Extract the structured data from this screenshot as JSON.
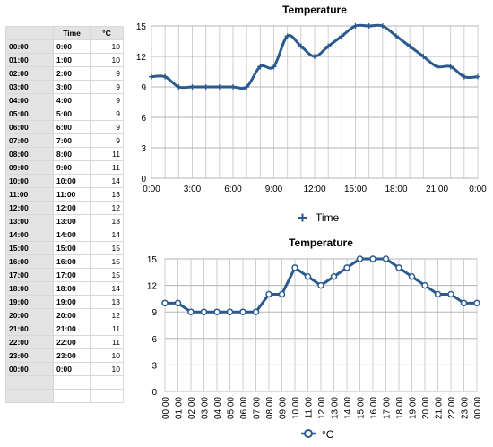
{
  "table": {
    "headers": [
      "",
      "Time",
      "°C"
    ],
    "rows": [
      [
        "00:00",
        "0:00",
        "10"
      ],
      [
        "01:00",
        "1:00",
        "10"
      ],
      [
        "02:00",
        "2:00",
        "9"
      ],
      [
        "03:00",
        "3:00",
        "9"
      ],
      [
        "04:00",
        "4:00",
        "9"
      ],
      [
        "05:00",
        "5:00",
        "9"
      ],
      [
        "06:00",
        "6:00",
        "9"
      ],
      [
        "07:00",
        "7:00",
        "9"
      ],
      [
        "08:00",
        "8:00",
        "11"
      ],
      [
        "09:00",
        "9:00",
        "11"
      ],
      [
        "10:00",
        "10:00",
        "14"
      ],
      [
        "11:00",
        "11:00",
        "13"
      ],
      [
        "12:00",
        "12:00",
        "12"
      ],
      [
        "13:00",
        "13:00",
        "13"
      ],
      [
        "14:00",
        "14:00",
        "14"
      ],
      [
        "15:00",
        "15:00",
        "15"
      ],
      [
        "16:00",
        "16:00",
        "15"
      ],
      [
        "17:00",
        "17:00",
        "15"
      ],
      [
        "18:00",
        "18:00",
        "14"
      ],
      [
        "19:00",
        "19:00",
        "13"
      ],
      [
        "20:00",
        "20:00",
        "12"
      ],
      [
        "21:00",
        "21:00",
        "11"
      ],
      [
        "22:00",
        "22:00",
        "11"
      ],
      [
        "23:00",
        "23:00",
        "10"
      ],
      [
        "00:00",
        "0:00",
        "10"
      ],
      [
        "",
        "",
        " "
      ],
      [
        "",
        "",
        ""
      ]
    ]
  },
  "chart_data": [
    {
      "type": "line",
      "title": "Temperature",
      "xlabel": "",
      "ylabel": "",
      "x": [
        0,
        1,
        2,
        3,
        4,
        5,
        6,
        7,
        8,
        9,
        10,
        11,
        12,
        13,
        14,
        15,
        16,
        17,
        18,
        19,
        20,
        21,
        22,
        23,
        24
      ],
      "series": [
        {
          "name": "Time",
          "values": [
            10,
            10,
            9,
            9,
            9,
            9,
            9,
            9,
            11,
            11,
            14,
            13,
            12,
            13,
            14,
            15,
            15,
            15,
            14,
            13,
            12,
            11,
            11,
            10,
            10
          ]
        }
      ],
      "x_tick_labels": [
        "0:00",
        "3:00",
        "6:00",
        "9:00",
        "12:00",
        "15:00",
        "18:00",
        "21:00",
        "0:00"
      ],
      "x_ticks": [
        0,
        3,
        6,
        9,
        12,
        15,
        18,
        21,
        24
      ],
      "ylim": [
        0,
        15
      ],
      "y_ticks": [
        0,
        3,
        6,
        9,
        12,
        15
      ],
      "grid": true,
      "legend": "bottom",
      "line_color": "#2b5a8f",
      "curve": "smooth"
    },
    {
      "type": "line",
      "title": "Temperature",
      "xlabel": "",
      "ylabel": "",
      "categories": [
        "00:00",
        "01:00",
        "02:00",
        "03:00",
        "04:00",
        "05:00",
        "06:00",
        "07:00",
        "08:00",
        "09:00",
        "10:00",
        "11:00",
        "12:00",
        "13:00",
        "14:00",
        "15:00",
        "16:00",
        "17:00",
        "18:00",
        "19:00",
        "20:00",
        "21:00",
        "22:00",
        "23:00",
        "00:00"
      ],
      "series": [
        {
          "name": "°C",
          "values": [
            10,
            10,
            9,
            9,
            9,
            9,
            9,
            9,
            11,
            11,
            14,
            13,
            12,
            13,
            14,
            15,
            15,
            15,
            14,
            13,
            12,
            11,
            11,
            10,
            10
          ]
        }
      ],
      "ylim": [
        0,
        15
      ],
      "y_ticks": [
        0,
        3,
        6,
        9,
        12,
        15
      ],
      "grid": true,
      "legend": "bottom",
      "line_color": "#2b5a8f",
      "marker": "circle"
    }
  ]
}
